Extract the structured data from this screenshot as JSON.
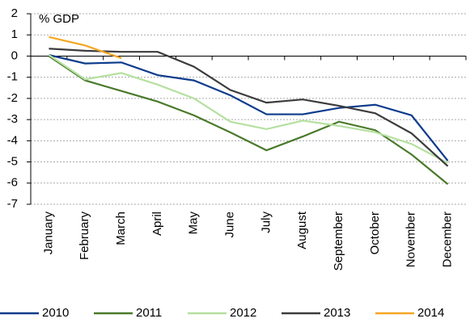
{
  "chart_data": {
    "type": "line",
    "y_axis_label": "% GDP",
    "categories": [
      "January",
      "February",
      "March",
      "April",
      "May",
      "June",
      "July",
      "August",
      "September",
      "October",
      "November",
      "December"
    ],
    "series": [
      {
        "name": "2010",
        "color": "#0d3b8c",
        "values": [
          0.05,
          -0.35,
          -0.3,
          -0.9,
          -1.15,
          -1.85,
          -2.75,
          -2.75,
          -2.45,
          -2.3,
          -2.8,
          -4.95
        ]
      },
      {
        "name": "2011",
        "color": "#4a7a2a",
        "values": [
          0.0,
          -1.15,
          -1.65,
          -2.15,
          -2.8,
          -3.6,
          -4.45,
          -3.8,
          -3.1,
          -3.5,
          -4.65,
          -6.05
        ]
      },
      {
        "name": "2012",
        "color": "#b6e0a0",
        "values": [
          0.05,
          -1.1,
          -0.8,
          -1.35,
          -2.0,
          -3.1,
          -3.45,
          -3.05,
          -3.3,
          -3.6,
          -4.15,
          -5.05
        ]
      },
      {
        "name": "2013",
        "color": "#3c3c3c",
        "values": [
          0.35,
          0.25,
          0.2,
          0.2,
          -0.5,
          -1.6,
          -2.2,
          -2.05,
          -2.35,
          -2.7,
          -3.65,
          -5.2
        ]
      },
      {
        "name": "2014",
        "color": "#f5a623",
        "values": [
          0.9,
          0.5,
          -0.1,
          null,
          null,
          null,
          null,
          null,
          null,
          null,
          null,
          null
        ]
      }
    ],
    "ylim": [
      -7,
      2
    ],
    "yticks": [
      -7,
      -6,
      -5,
      -4,
      -3,
      -2,
      -1,
      0,
      1,
      2
    ],
    "grid": true,
    "legend": "bottom"
  }
}
